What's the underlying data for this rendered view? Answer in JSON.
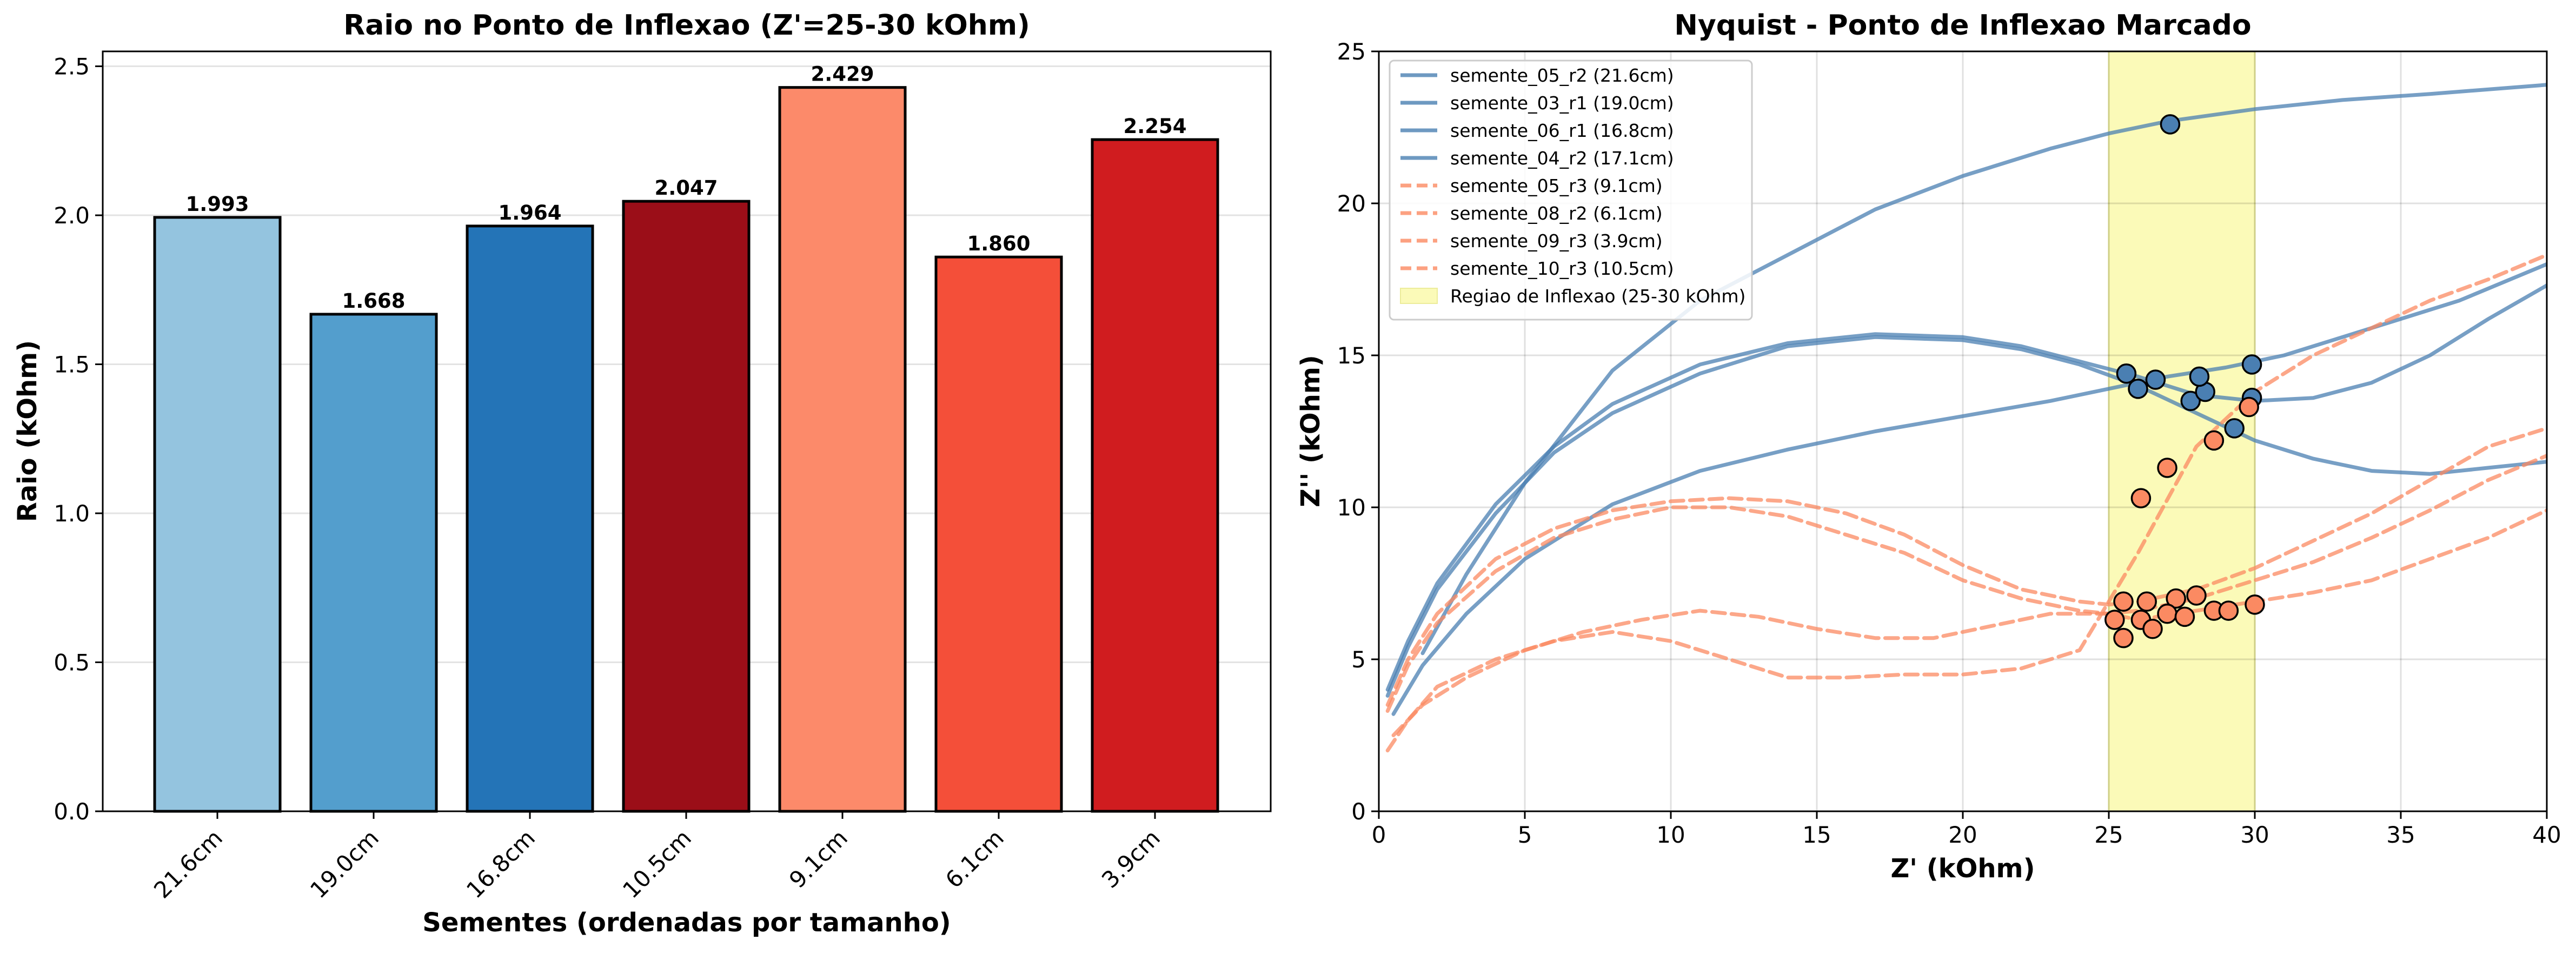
{
  "chart_data": [
    {
      "type": "bar",
      "title": "Raio no Ponto de Inflexao (Z'=25-30 kOhm)",
      "xlabel": "Sementes (ordenadas por tamanho)",
      "ylabel": "Raio (kOhm)",
      "ylim": [
        0,
        2.55
      ],
      "yticks": [
        "0.0",
        "0.5",
        "1.0",
        "1.5",
        "2.0",
        "2.5"
      ],
      "grid": "y",
      "categories": [
        "21.6cm",
        "19.0cm",
        "16.8cm",
        "10.5cm",
        "9.1cm",
        "6.1cm",
        "3.9cm"
      ],
      "values": [
        1.993,
        1.668,
        1.964,
        2.047,
        2.429,
        1.86,
        2.254
      ],
      "value_labels": [
        "1.993",
        "1.668",
        "1.964",
        "2.047",
        "2.429",
        "1.860",
        "2.254"
      ],
      "bar_colors": [
        "#94c4df",
        "#539ecd",
        "#2474b7",
        "#9b0e18",
        "#fc8a6a",
        "#f44f39",
        "#d01c1f"
      ]
    },
    {
      "type": "line",
      "title": "Nyquist - Ponto de Inflexao Marcado",
      "xlabel": "Z' (kOhm)",
      "ylabel": "Z'' (kOhm)",
      "xlim": [
        0,
        40
      ],
      "ylim": [
        0,
        25
      ],
      "xticks": [
        "0",
        "5",
        "10",
        "15",
        "20",
        "25",
        "30",
        "35",
        "40"
      ],
      "yticks": [
        "0",
        "5",
        "10",
        "15",
        "20",
        "25"
      ],
      "grid": "both",
      "legend_position": "top-left",
      "blue_color": "#4a7fb2",
      "red_color": "#fb8a62",
      "series": [
        {
          "name": "semente_05_r2 (21.6cm)",
          "group": "blue",
          "x": [
            1.5,
            3,
            5,
            8,
            11,
            14,
            17,
            20,
            23,
            25,
            27,
            30,
            33,
            36,
            40
          ],
          "y": [
            5.2,
            7.8,
            10.8,
            14.5,
            16.8,
            18.3,
            19.8,
            20.9,
            21.8,
            22.3,
            22.7,
            23.1,
            23.4,
            23.6,
            23.9
          ],
          "markers": [
            [
              27.1,
              22.6
            ]
          ]
        },
        {
          "name": "semente_03_r1 (19.0cm)",
          "group": "blue",
          "x": [
            0.3,
            1,
            2,
            4,
            6,
            8,
            11,
            14,
            17,
            20,
            22,
            24,
            26,
            28,
            30,
            32,
            34,
            36,
            38,
            40
          ],
          "y": [
            4,
            5.6,
            7.5,
            10.1,
            12,
            13.4,
            14.7,
            15.4,
            15.7,
            15.6,
            15.3,
            14.8,
            14.3,
            13.7,
            13.5,
            13.6,
            14.1,
            15,
            16.2,
            17.3
          ],
          "markers": [
            [
              25.6,
              14.4
            ],
            [
              27.8,
              13.5
            ],
            [
              29.9,
              13.6
            ]
          ]
        },
        {
          "name": "semente_06_r1 (16.8cm)",
          "group": "blue",
          "x": [
            0.3,
            1,
            2,
            4,
            6,
            8,
            11,
            14,
            17,
            20,
            22,
            24,
            26,
            28,
            30,
            32,
            34,
            36,
            38,
            40
          ],
          "y": [
            3.8,
            5.4,
            7.3,
            9.8,
            11.8,
            13.1,
            14.4,
            15.3,
            15.6,
            15.5,
            15.2,
            14.7,
            14.0,
            13.1,
            12.2,
            11.6,
            11.2,
            11.1,
            11.3,
            11.5
          ],
          "markers": [
            [
              26.0,
              13.9
            ],
            [
              28.3,
              13.8
            ],
            [
              29.3,
              12.6
            ]
          ]
        },
        {
          "name": "semente_04_r2 (17.1cm)",
          "group": "blue",
          "x": [
            0.5,
            1.5,
            3,
            5,
            8,
            11,
            14,
            17,
            20,
            23,
            25,
            27,
            29,
            31,
            33,
            35,
            37,
            40
          ],
          "y": [
            3.2,
            4.8,
            6.5,
            8.3,
            10.1,
            11.2,
            11.9,
            12.5,
            13.0,
            13.5,
            13.9,
            14.3,
            14.6,
            15.0,
            15.6,
            16.2,
            16.8,
            18.0
          ],
          "markers": [
            [
              26.6,
              14.2
            ],
            [
              28.1,
              14.3
            ],
            [
              29.9,
              14.7
            ]
          ]
        },
        {
          "name": "semente_05_r3 (9.1cm)",
          "group": "red",
          "x": [
            0.3,
            1,
            2,
            4,
            6,
            8,
            10,
            12,
            14,
            16,
            18,
            20,
            22,
            24,
            25,
            26,
            28,
            30,
            32,
            34,
            36,
            38,
            40
          ],
          "y": [
            3.5,
            5,
            6.5,
            8.3,
            9.3,
            9.9,
            10.2,
            10.3,
            10.2,
            9.8,
            9.1,
            8.1,
            7.3,
            6.9,
            6.8,
            6.9,
            7.3,
            8.0,
            8.9,
            9.8,
            10.9,
            12.0,
            12.6
          ],
          "markers": [
            [
              25.5,
              6.9
            ],
            [
              26.3,
              6.9
            ],
            [
              27.3,
              7.0
            ],
            [
              28.0,
              7.1
            ]
          ]
        },
        {
          "name": "semente_08_r2 (6.1cm)",
          "group": "red",
          "x": [
            0.3,
            1,
            2,
            4,
            6,
            8,
            10,
            12,
            14,
            16,
            18,
            20,
            22,
            24,
            25,
            26,
            28,
            30,
            32,
            34,
            36,
            38,
            40
          ],
          "y": [
            3.3,
            4.8,
            6.2,
            7.9,
            9,
            9.6,
            10.0,
            10.0,
            9.7,
            9.1,
            8.5,
            7.6,
            7.0,
            6.6,
            6.5,
            6.6,
            7.0,
            7.6,
            8.2,
            9.0,
            9.9,
            10.9,
            11.7
          ],
          "markers": [
            [
              25.2,
              6.3
            ],
            [
              26.1,
              6.3
            ],
            [
              27.0,
              6.5
            ],
            [
              28.6,
              6.6
            ]
          ]
        },
        {
          "name": "semente_09_r3 (3.9cm)",
          "group": "red",
          "x": [
            0.5,
            1.5,
            3,
            5,
            7,
            9,
            11,
            13,
            15,
            17,
            19,
            21,
            23,
            25,
            26,
            28,
            30,
            32,
            34,
            36,
            38,
            40
          ],
          "y": [
            2.5,
            3.5,
            4.4,
            5.3,
            5.9,
            6.3,
            6.6,
            6.4,
            6.0,
            5.7,
            5.7,
            6.1,
            6.5,
            6.5,
            6.3,
            6.6,
            6.9,
            7.2,
            7.6,
            8.3,
            9.0,
            9.9
          ],
          "markers": [
            [
              25.5,
              5.7
            ],
            [
              26.5,
              6.0
            ],
            [
              27.6,
              6.4
            ],
            [
              29.1,
              6.6
            ],
            [
              30.0,
              6.8
            ]
          ]
        },
        {
          "name": "semente_10_r3 (10.5cm)",
          "group": "red",
          "x": [
            0.3,
            1,
            2,
            4,
            6,
            8,
            10,
            12,
            14,
            16,
            18,
            20,
            22,
            24,
            26,
            28,
            30,
            32,
            34,
            36,
            38,
            40
          ],
          "y": [
            2,
            3,
            4.1,
            5,
            5.6,
            5.9,
            5.6,
            5.0,
            4.4,
            4.4,
            4.5,
            4.5,
            4.7,
            5.3,
            8.5,
            12.0,
            13.8,
            15.0,
            15.9,
            16.8,
            17.5,
            18.3
          ],
          "markers": [
            [
              26.1,
              10.3
            ],
            [
              27.0,
              11.3
            ],
            [
              28.6,
              12.2
            ],
            [
              29.8,
              13.3
            ]
          ]
        }
      ],
      "inflection_region": {
        "x0": 25,
        "x1": 30,
        "label": "Regiao de Inflexao (25-30 kOhm)",
        "color": "#fbfab8"
      }
    }
  ]
}
